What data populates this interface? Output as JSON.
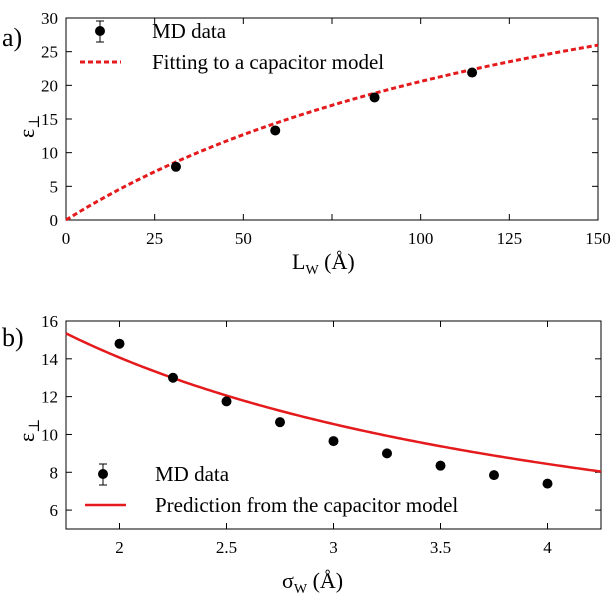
{
  "chart_data": [
    {
      "type": "scatter",
      "panel_label": "a)",
      "xlabel_main": "L",
      "xlabel_sub": "W",
      "xlabel_unit": " (Å)",
      "ylabel_main": "ε",
      "ylabel_sub": "⊥",
      "xlim": [
        0,
        150
      ],
      "ylim": [
        0,
        30
      ],
      "xticks": [
        0,
        25,
        50,
        75,
        100,
        125,
        150
      ],
      "xtick_labels": [
        "0",
        "25",
        "50",
        "",
        "100",
        "125",
        "150"
      ],
      "yticks": [
        0,
        5,
        10,
        15,
        20,
        25,
        30
      ],
      "ytick_labels": [
        "0",
        "5",
        "10",
        "15",
        "20",
        "25",
        "30"
      ],
      "grid": false,
      "legend_position": "top-left",
      "series": [
        {
          "name": "MD data",
          "kind": "points",
          "x": [
            31,
            59,
            87,
            114.5
          ],
          "y": [
            7.9,
            13.3,
            18.2,
            21.9
          ],
          "color": "#000000"
        },
        {
          "name": "Fitting to a capacitor model",
          "kind": "dashed-curve",
          "model": "L/(a+b*L)",
          "params": {
            "a": 3.03,
            "b": 0.0183
          },
          "x_range": [
            0,
            150
          ],
          "color": "#e41a1c"
        }
      ]
    },
    {
      "type": "scatter",
      "panel_label": "b)",
      "xlabel_main": "σ",
      "xlabel_sub": "W",
      "xlabel_unit": " (Å)",
      "ylabel_main": "ε",
      "ylabel_sub": "⊥",
      "xlim": [
        1.75,
        4.25
      ],
      "ylim": [
        5,
        16
      ],
      "xticks": [
        2,
        2.5,
        3,
        3.5,
        4
      ],
      "xtick_labels": [
        "2",
        "2.5",
        "3",
        "3.5",
        "4"
      ],
      "yticks": [
        6,
        8,
        10,
        12,
        14,
        16
      ],
      "ytick_labels": [
        "6",
        "8",
        "10",
        "12",
        "14",
        "16"
      ],
      "grid": false,
      "legend_position": "bottom-left",
      "series": [
        {
          "name": "MD data",
          "kind": "points",
          "x": [
            2.0,
            2.25,
            2.5,
            2.75,
            3.0,
            3.25,
            3.5,
            3.75,
            4.0
          ],
          "y": [
            14.8,
            13.0,
            11.75,
            10.65,
            9.65,
            9.0,
            8.35,
            7.85,
            7.4
          ],
          "color": "#000000"
        },
        {
          "name": "Prediction from the capacitor model",
          "kind": "solid-curve",
          "model": "a/(x+c)",
          "params": {
            "a": 42.2,
            "c": 1.0
          },
          "x_range": [
            1.75,
            4.25
          ],
          "color": "#e41a1c"
        }
      ]
    }
  ]
}
